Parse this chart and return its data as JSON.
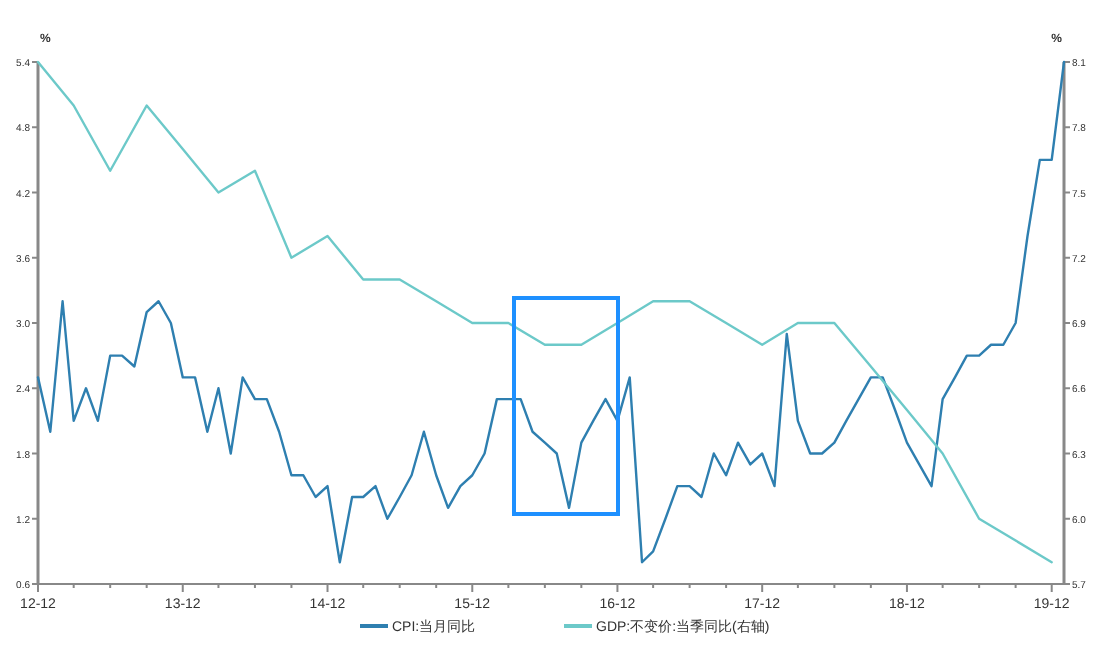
{
  "chart_data": {
    "type": "line",
    "ylabel": "%",
    "y2label": "%",
    "xlim": [
      "2012-12",
      "2020-01"
    ],
    "xticks": [
      {
        "value": "2012-12",
        "label": "12-12"
      },
      {
        "value": "2013-03",
        "label": null
      },
      {
        "value": "2013-06",
        "label": null
      },
      {
        "value": "2013-09",
        "label": null
      },
      {
        "value": "2013-12",
        "label": "13-12"
      },
      {
        "value": "2014-03",
        "label": null
      },
      {
        "value": "2014-06",
        "label": null
      },
      {
        "value": "2014-09",
        "label": null
      },
      {
        "value": "2014-12",
        "label": "14-12"
      },
      {
        "value": "2015-03",
        "label": null
      },
      {
        "value": "2015-06",
        "label": null
      },
      {
        "value": "2015-09",
        "label": null
      },
      {
        "value": "2015-12",
        "label": "15-12"
      },
      {
        "value": "2016-03",
        "label": null
      },
      {
        "value": "2016-06",
        "label": null
      },
      {
        "value": "2016-09",
        "label": null
      },
      {
        "value": "2016-12",
        "label": "16-12"
      },
      {
        "value": "2017-03",
        "label": null
      },
      {
        "value": "2017-06",
        "label": null
      },
      {
        "value": "2017-09",
        "label": null
      },
      {
        "value": "2017-12",
        "label": "17-12"
      },
      {
        "value": "2018-03",
        "label": null
      },
      {
        "value": "2018-06",
        "label": null
      },
      {
        "value": "2018-09",
        "label": null
      },
      {
        "value": "2018-12",
        "label": "18-12"
      },
      {
        "value": "2019-03",
        "label": null
      },
      {
        "value": "2019-06",
        "label": null
      },
      {
        "value": "2019-09",
        "label": null
      },
      {
        "value": "2019-12",
        "label": "19-12"
      }
    ],
    "ylim": [
      0.6,
      5.4
    ],
    "yticks": [
      0.6,
      1.2,
      1.8,
      2.4,
      {
        "value": 3,
        "label": "3.0"
      },
      3.6,
      4.2,
      4.8,
      5.4
    ],
    "y2lim": [
      5.7,
      8.1
    ],
    "y2ticks": [
      5.7,
      {
        "value": 6,
        "label": "6.0"
      },
      6.3,
      6.6,
      6.9,
      7.2,
      7.5,
      7.8,
      8.1
    ],
    "grid": false,
    "legend": "bottom",
    "marker": "none",
    "line_style": "solid",
    "series": [
      {
        "name": "CPI:当月同比",
        "color": "#2e7fb0",
        "x": [
          "2012-12",
          "2013-01",
          "2013-02",
          "2013-03",
          "2013-04",
          "2013-05",
          "2013-06",
          "2013-07",
          "2013-08",
          "2013-09",
          "2013-10",
          "2013-11",
          "2013-12",
          "2014-01",
          "2014-02",
          "2014-03",
          "2014-04",
          "2014-05",
          "2014-06",
          "2014-07",
          "2014-08",
          "2014-09",
          "2014-10",
          "2014-11",
          "2014-12",
          "2015-01",
          "2015-02",
          "2015-03",
          "2015-04",
          "2015-05",
          "2015-06",
          "2015-07",
          "2015-08",
          "2015-09",
          "2015-10",
          "2015-11",
          "2015-12",
          "2016-01",
          "2016-02",
          "2016-03",
          "2016-04",
          "2016-05",
          "2016-06",
          "2016-07",
          "2016-08",
          "2016-09",
          "2016-10",
          "2016-11",
          "2016-12",
          "2017-01",
          "2017-02",
          "2017-03",
          "2017-04",
          "2017-05",
          "2017-06",
          "2017-07",
          "2017-08",
          "2017-09",
          "2017-10",
          "2017-11",
          "2017-12",
          "2018-01",
          "2018-02",
          "2018-03",
          "2018-04",
          "2018-05",
          "2018-06",
          "2018-07",
          "2018-08",
          "2018-09",
          "2018-10",
          "2018-11",
          "2018-12",
          "2019-01",
          "2019-02",
          "2019-03",
          "2019-04",
          "2019-05",
          "2019-06",
          "2019-07",
          "2019-08",
          "2019-09",
          "2019-10",
          "2019-11",
          "2019-12",
          "2020-01"
        ],
        "values": [
          2.5,
          2.0,
          3.2,
          2.1,
          2.4,
          2.1,
          2.7,
          2.7,
          2.6,
          3.1,
          3.2,
          3.0,
          2.5,
          2.5,
          2.0,
          2.4,
          1.8,
          2.5,
          2.3,
          2.3,
          2.0,
          1.6,
          1.6,
          1.4,
          1.5,
          0.8,
          1.4,
          1.4,
          1.5,
          1.2,
          1.4,
          1.6,
          2.0,
          1.6,
          1.3,
          1.5,
          1.6,
          1.8,
          2.3,
          2.3,
          2.3,
          2.0,
          1.9,
          1.8,
          1.3,
          1.9,
          2.1,
          2.3,
          2.1,
          2.5,
          0.8,
          0.9,
          1.2,
          1.5,
          1.5,
          1.4,
          1.8,
          1.6,
          1.9,
          1.7,
          1.8,
          1.5,
          2.9,
          2.1,
          1.8,
          1.8,
          1.9,
          2.1,
          2.3,
          2.5,
          2.5,
          2.2,
          1.9,
          1.7,
          1.5,
          2.3,
          2.5,
          2.7,
          2.7,
          2.8,
          2.8,
          3.0,
          3.8,
          4.5,
          4.5,
          5.4
        ]
      },
      {
        "name": "GDP:不变价:当季同比(右轴)",
        "color": "#6cc9c9",
        "axis": "y2",
        "x": [
          "2012-12",
          "2013-03",
          "2013-06",
          "2013-09",
          "2013-12",
          "2014-03",
          "2014-06",
          "2014-09",
          "2014-12",
          "2015-03",
          "2015-06",
          "2015-09",
          "2015-12",
          "2016-03",
          "2016-06",
          "2016-09",
          "2016-12",
          "2017-03",
          "2017-06",
          "2017-09",
          "2017-12",
          "2018-03",
          "2018-06",
          "2018-09",
          "2018-12",
          "2019-03",
          "2019-06",
          "2019-09",
          "2019-12"
        ],
        "values": [
          8.1,
          7.9,
          7.6,
          7.9,
          7.7,
          7.5,
          7.6,
          7.2,
          7.3,
          7.1,
          7.1,
          7.0,
          6.9,
          6.9,
          6.8,
          6.8,
          6.9,
          7.0,
          7.0,
          6.9,
          6.8,
          6.9,
          6.9,
          6.7,
          6.5,
          6.3,
          6.0,
          5.9,
          5.8
        ]
      }
    ]
  }
}
